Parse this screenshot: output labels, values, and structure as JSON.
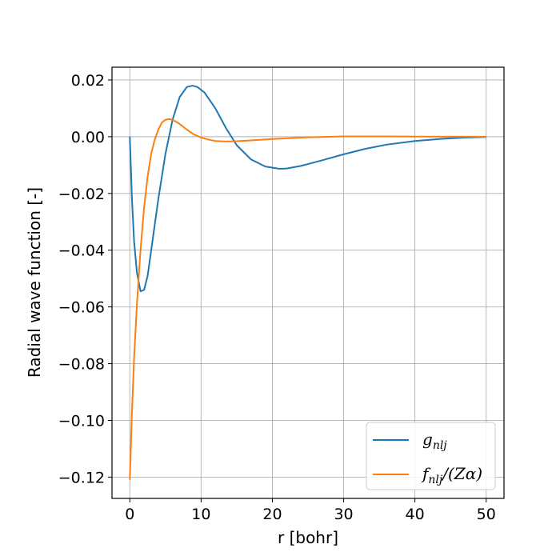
{
  "chart_data": {
    "type": "line",
    "xlabel": "r [bohr]",
    "ylabel": "Radial wave function [-]",
    "xlim": [
      -2.5,
      52.5
    ],
    "ylim": [
      -0.1275,
      0.0245
    ],
    "x_ticks": [
      0,
      10,
      20,
      30,
      40,
      50
    ],
    "x_tick_labels": [
      "0",
      "10",
      "20",
      "30",
      "40",
      "50"
    ],
    "y_ticks": [
      0.02,
      0.0,
      -0.02,
      -0.04,
      -0.06,
      -0.08,
      -0.1,
      -0.12
    ],
    "y_tick_labels": [
      "0.02",
      "0.00",
      "−0.02",
      "−0.04",
      "−0.06",
      "−0.08",
      "−0.10",
      "−0.12"
    ],
    "grid": true,
    "legend_position": "lower-right",
    "series": [
      {
        "name": "g_{nlj}",
        "label_main": "g",
        "label_sub": "nlj",
        "label_suffix": "",
        "color": "#1f77b4",
        "x": [
          0,
          0.3,
          0.6,
          1.0,
          1.5,
          2.0,
          2.5,
          3.0,
          3.5,
          4.0,
          5.0,
          6.0,
          7.0,
          8.0,
          8.8,
          9.5,
          10.5,
          12.0,
          13.5,
          15.0,
          17.0,
          19.0,
          21.0,
          22.0,
          24.0,
          27.0,
          30.0,
          33.0,
          36.0,
          40.0,
          44.0,
          47.0,
          50.0
        ],
        "y": [
          0.0,
          -0.022,
          -0.037,
          -0.048,
          -0.0545,
          -0.054,
          -0.049,
          -0.04,
          -0.031,
          -0.022,
          -0.006,
          0.006,
          0.014,
          0.0175,
          0.018,
          0.0175,
          0.0155,
          0.01,
          0.003,
          -0.003,
          -0.008,
          -0.0105,
          -0.0113,
          -0.0112,
          -0.0103,
          -0.0083,
          -0.0062,
          -0.0043,
          -0.0028,
          -0.0015,
          -0.0007,
          -0.0003,
          -0.0001
        ]
      },
      {
        "name": "f_{nlj}/(Zα)",
        "label_main": "f",
        "label_sub": "nlj",
        "label_suffix": "/(Zα)",
        "color": "#ff7f0e",
        "x": [
          0,
          0.3,
          0.6,
          1.0,
          1.5,
          2.0,
          2.5,
          3.0,
          3.5,
          4.0,
          4.5,
          5.0,
          5.5,
          6.0,
          7.0,
          8.0,
          9.0,
          10.0,
          11.0,
          12.0,
          13.5,
          15.0,
          17.0,
          20.0,
          25.0,
          30.0,
          35.0,
          40.0,
          45.0,
          50.0
        ],
        "y": [
          -0.121,
          -0.097,
          -0.078,
          -0.059,
          -0.04,
          -0.025,
          -0.014,
          -0.006,
          -0.001,
          0.0025,
          0.005,
          0.006,
          0.0062,
          0.006,
          0.0045,
          0.0025,
          0.0008,
          -0.0003,
          -0.001,
          -0.0015,
          -0.0017,
          -0.0016,
          -0.0013,
          -0.0008,
          -0.0002,
          0.0001,
          0.0001,
          5e-05,
          0.0,
          0.0
        ]
      }
    ]
  }
}
